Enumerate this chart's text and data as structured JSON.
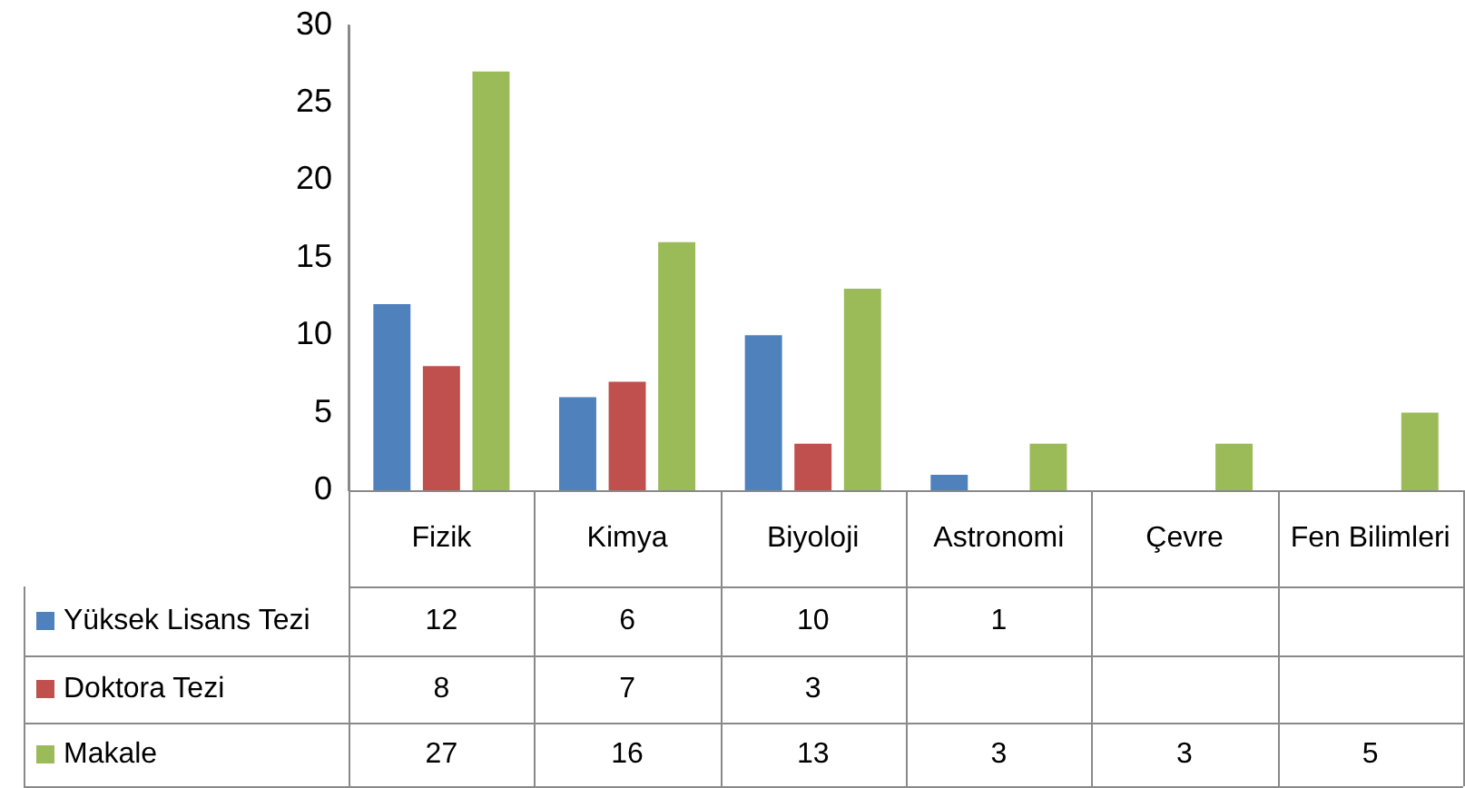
{
  "chart_data": {
    "type": "bar",
    "categories": [
      "Fizik",
      "Kimya",
      "Biyoloji",
      "Astronomi",
      "Çevre",
      "Fen Bilimleri"
    ],
    "series": [
      {
        "name": "Yüksek Lisans Tezi",
        "color": "#4f81bd",
        "values": [
          12,
          6,
          10,
          1,
          null,
          null
        ]
      },
      {
        "name": "Doktora Tezi",
        "color": "#c0504d",
        "values": [
          8,
          7,
          3,
          null,
          null,
          null
        ]
      },
      {
        "name": "Makale",
        "color": "#9bbb59",
        "values": [
          27,
          16,
          13,
          3,
          3,
          5
        ]
      }
    ],
    "ylim": [
      0,
      30
    ],
    "yticks": [
      0,
      5,
      10,
      15,
      20,
      25,
      30
    ],
    "grid": false,
    "legend": "bottom left",
    "data_labels": true
  }
}
